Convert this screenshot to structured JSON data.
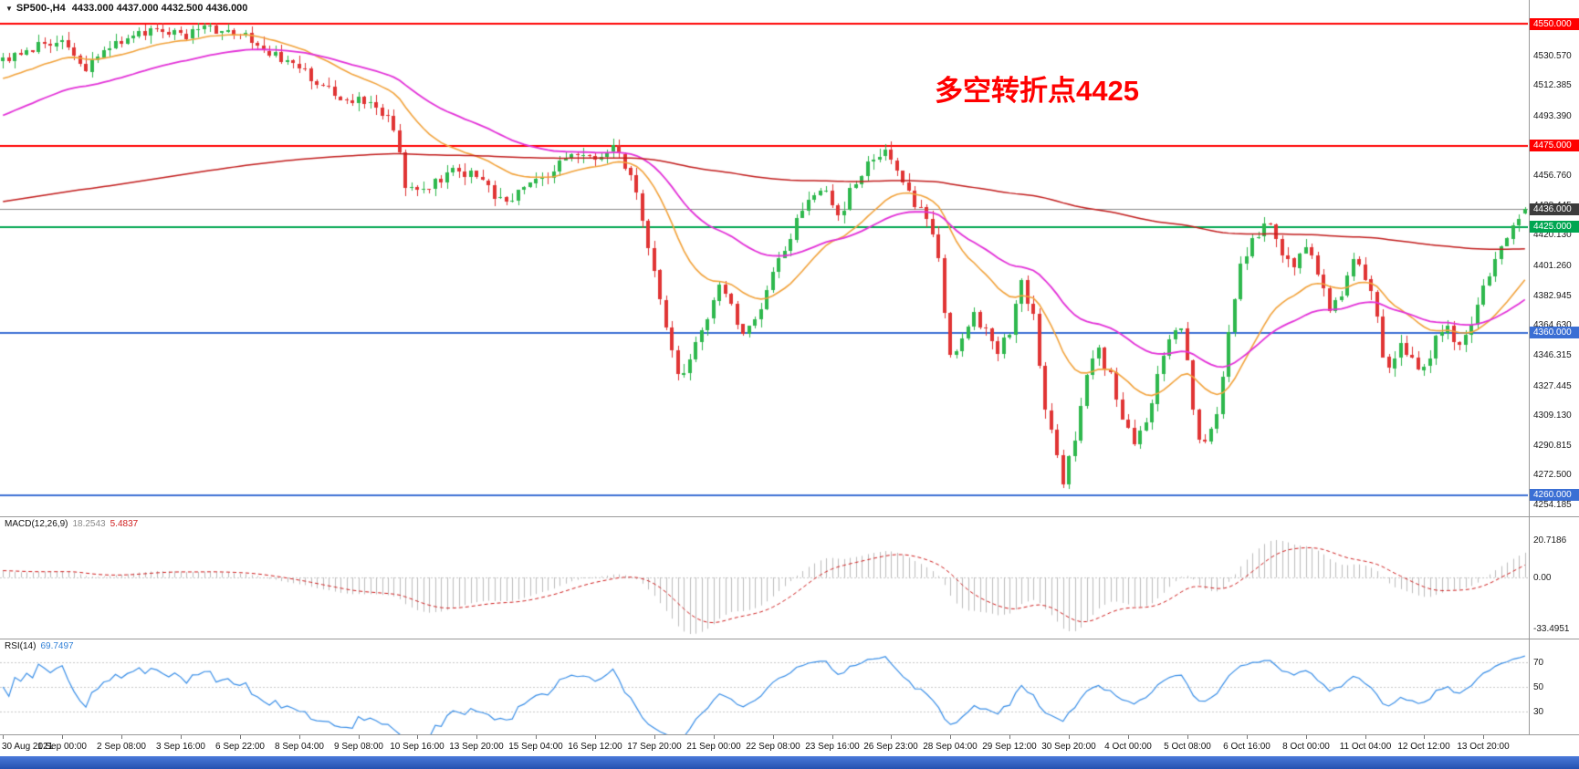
{
  "chart": {
    "title": {
      "symbol": "SP500-,H4",
      "ohlc": "4433.000 4437.000 4432.500 4436.000",
      "dropdown_glyph": "▼"
    },
    "annotation": {
      "text": "多空转折点4425",
      "color": "#ff0000"
    }
  },
  "chart_data": {
    "type": "candlestick",
    "symbol": "SP500-",
    "timeframe": "H4",
    "bar_count": 258,
    "last_bar": {
      "open": 4433.0,
      "high": 4437.0,
      "low": 4432.5,
      "close": 4436.0
    },
    "main_axis": {
      "top_price": 4564.6,
      "bottom_price": 4246.9,
      "ticks": [
        "4530.570",
        "4512.385",
        "4493.390",
        "4456.760",
        "4438.445",
        "4420.130",
        "4401.260",
        "4382.945",
        "4364.630",
        "4346.315",
        "4327.445",
        "4309.130",
        "4290.815",
        "4272.500",
        "4254.185"
      ]
    },
    "hlines": [
      {
        "value": 4550.0,
        "label": "4550.000",
        "color": "#ff0000",
        "width": 2
      },
      {
        "value": 4475.0,
        "label": "4475.000",
        "color": "#ff0000",
        "width": 2
      },
      {
        "value": 4436.0,
        "label": "4436.000",
        "color": "#8a8a8a",
        "badge_bg": "#3c3c3c",
        "width": 1
      },
      {
        "value": 4425.0,
        "label": "4425.000",
        "color": "#00a651",
        "width": 2
      },
      {
        "value": 4360.0,
        "label": "4360.000",
        "color": "#3b6fd4",
        "width": 2
      },
      {
        "value": 4260.0,
        "label": "4260.000",
        "color": "#3b6fd4",
        "width": 2
      }
    ],
    "time_labels": [
      "30 Aug 2021",
      "1 Sep 00:00",
      "2 Sep 08:00",
      "3 Sep 16:00",
      "6 Sep 22:00",
      "8 Sep 04:00",
      "9 Sep 08:00",
      "10 Sep 16:00",
      "13 Sep 20:00",
      "15 Sep 04:00",
      "16 Sep 12:00",
      "17 Sep 20:00",
      "21 Sep 00:00",
      "22 Sep 08:00",
      "23 Sep 16:00",
      "26 Sep 23:00",
      "28 Sep 04:00",
      "29 Sep 12:00",
      "30 Sep 20:00",
      "4 Oct 00:00",
      "5 Oct 08:00",
      "6 Oct 16:00",
      "8 Oct 00:00",
      "11 Oct 04:00",
      "12 Oct 12:00",
      "13 Oct 20:00"
    ],
    "price_path_anchors": [
      [
        0,
        4527
      ],
      [
        6,
        4536
      ],
      [
        10,
        4542
      ],
      [
        14,
        4522
      ],
      [
        18,
        4538
      ],
      [
        24,
        4546
      ],
      [
        30,
        4543
      ],
      [
        34,
        4548
      ],
      [
        40,
        4545
      ],
      [
        44,
        4534
      ],
      [
        50,
        4522
      ],
      [
        56,
        4507
      ],
      [
        62,
        4500
      ],
      [
        66,
        4488
      ],
      [
        68,
        4452
      ],
      [
        72,
        4448
      ],
      [
        76,
        4461
      ],
      [
        80,
        4455
      ],
      [
        84,
        4442
      ],
      [
        88,
        4447
      ],
      [
        92,
        4458
      ],
      [
        96,
        4470
      ],
      [
        100,
        4466
      ],
      [
        103,
        4472
      ],
      [
        106,
        4458
      ],
      [
        108,
        4430
      ],
      [
        110,
        4400
      ],
      [
        112,
        4360
      ],
      [
        114,
        4333
      ],
      [
        116,
        4342
      ],
      [
        118,
        4362
      ],
      [
        121,
        4390
      ],
      [
        123,
        4380
      ],
      [
        125,
        4356
      ],
      [
        127,
        4366
      ],
      [
        130,
        4396
      ],
      [
        133,
        4420
      ],
      [
        136,
        4442
      ],
      [
        139,
        4448
      ],
      [
        141,
        4431
      ],
      [
        143,
        4446
      ],
      [
        146,
        4466
      ],
      [
        149,
        4473
      ],
      [
        152,
        4455
      ],
      [
        154,
        4440
      ],
      [
        156,
        4431
      ],
      [
        158,
        4405
      ],
      [
        159,
        4370
      ],
      [
        160,
        4348
      ],
      [
        162,
        4354
      ],
      [
        164,
        4372
      ],
      [
        166,
        4360
      ],
      [
        168,
        4346
      ],
      [
        170,
        4362
      ],
      [
        172,
        4390
      ],
      [
        174,
        4368
      ],
      [
        175,
        4340
      ],
      [
        176,
        4312
      ],
      [
        178,
        4286
      ],
      [
        179,
        4268
      ],
      [
        181,
        4295
      ],
      [
        183,
        4335
      ],
      [
        185,
        4348
      ],
      [
        187,
        4333
      ],
      [
        189,
        4308
      ],
      [
        191,
        4292
      ],
      [
        193,
        4302
      ],
      [
        195,
        4332
      ],
      [
        197,
        4356
      ],
      [
        199,
        4360
      ],
      [
        200,
        4340
      ],
      [
        201,
        4312
      ],
      [
        202,
        4295
      ],
      [
        203,
        4290
      ],
      [
        205,
        4312
      ],
      [
        207,
        4360
      ],
      [
        209,
        4400
      ],
      [
        211,
        4418
      ],
      [
        214,
        4426
      ],
      [
        216,
        4408
      ],
      [
        218,
        4402
      ],
      [
        220,
        4413
      ],
      [
        222,
        4396
      ],
      [
        224,
        4372
      ],
      [
        226,
        4382
      ],
      [
        228,
        4406
      ],
      [
        230,
        4396
      ],
      [
        232,
        4368
      ],
      [
        233,
        4345
      ],
      [
        234,
        4338
      ],
      [
        236,
        4352
      ],
      [
        238,
        4341
      ],
      [
        240,
        4336
      ],
      [
        242,
        4356
      ],
      [
        244,
        4362
      ],
      [
        246,
        4350
      ],
      [
        248,
        4366
      ],
      [
        250,
        4386
      ],
      [
        252,
        4402
      ],
      [
        254,
        4420
      ],
      [
        256,
        4431
      ],
      [
        257,
        4436
      ]
    ],
    "ma_lines": [
      {
        "name": "ma-fast-orange",
        "alpha": 0.0952,
        "seed": 4515,
        "color": "#f2a33c",
        "width": 1.6
      },
      {
        "name": "ma-mid-magenta",
        "alpha": 0.0435,
        "seed": 4492,
        "color": "#e332d8",
        "width": 1.8
      },
      {
        "name": "ma-slow-darkred",
        "alpha": 0.0062,
        "seed": 4440,
        "color": "#c21d1d",
        "width": 1.5
      }
    ],
    "indicators": {
      "macd": {
        "name": "MACD(12,26,9)",
        "fast": 12,
        "slow": 26,
        "signal": 9,
        "value_main": "18.2543",
        "value_signal": "5.4837",
        "axis_labels": [
          "20.7186",
          "0.00",
          "-33.4951"
        ],
        "display_max": 20.7186,
        "display_min": -33.4951
      },
      "rsi": {
        "name": "RSI(14)",
        "period": 14,
        "value": "69.7497",
        "levels": [
          "70",
          "50",
          "30"
        ],
        "level_values": [
          70,
          50,
          30
        ]
      }
    },
    "colors": {
      "up": "#2eb84d",
      "down": "#e03434",
      "macd_hist": "#bdbdbd",
      "macd_signal": "#d02020",
      "rsi": "#3a8fe8",
      "grid_dotted": "#c9c9c9",
      "taskbar": "#2f5fc0"
    }
  }
}
